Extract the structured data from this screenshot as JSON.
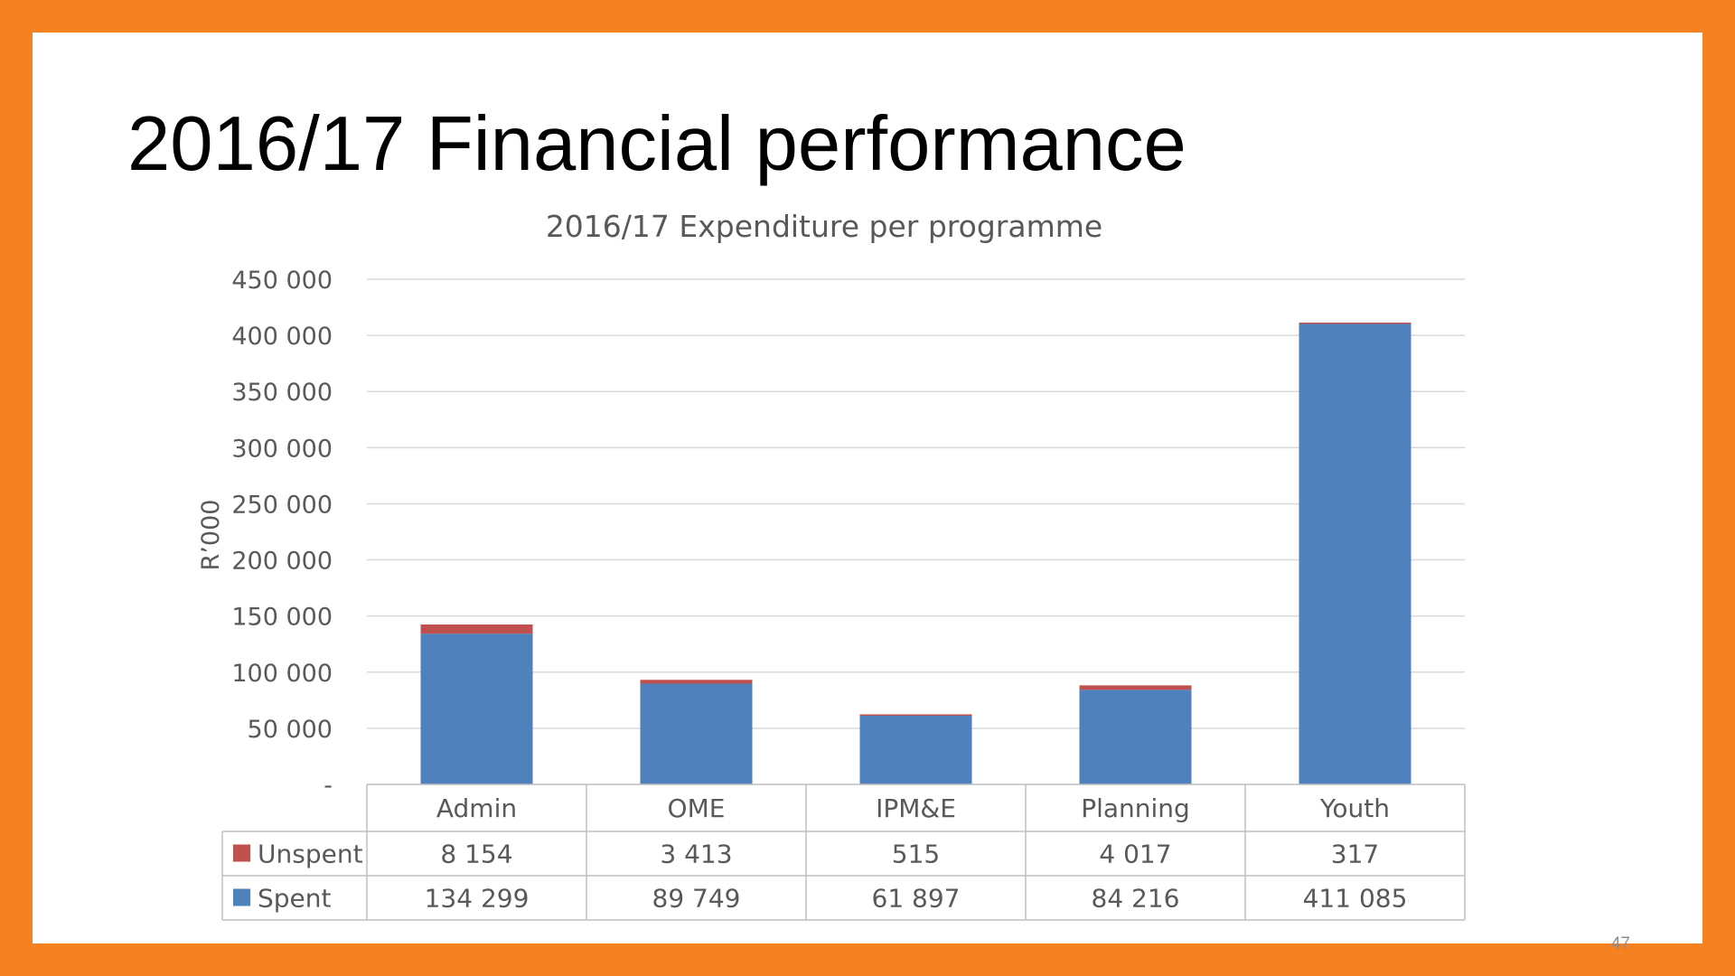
{
  "title": "2016/17 Financial performance",
  "page_number": "47",
  "colors": {
    "frame": "#F58220",
    "spent": "#4F81BD",
    "unspent": "#C0504D"
  },
  "chart_data": {
    "type": "bar",
    "stacked": true,
    "title": "2016/17 Expenditure per programme",
    "xlabel": "",
    "ylabel": "R’000",
    "ylim": [
      0,
      450000
    ],
    "yticks": [
      0,
      50000,
      100000,
      150000,
      200000,
      250000,
      300000,
      350000,
      400000,
      450000
    ],
    "ytick_labels": [
      "-",
      "50 000",
      "100 000",
      "150 000",
      "200 000",
      "250 000",
      "300 000",
      "350 000",
      "400 000",
      "450 000"
    ],
    "categories": [
      "Admin",
      "OME",
      "IPM&E",
      "Planning",
      "Youth"
    ],
    "grid": true,
    "legend": "data-table",
    "series": [
      {
        "name": "Spent",
        "color": "#4F81BD",
        "values": [
          134299,
          89749,
          61897,
          84216,
          411085
        ],
        "labels": [
          "134 299",
          "89 749",
          "61 897",
          "84 216",
          "411 085"
        ]
      },
      {
        "name": "Unspent",
        "color": "#C0504D",
        "values": [
          8154,
          3413,
          515,
          4017,
          317
        ],
        "labels": [
          "8 154",
          "3 413",
          "515",
          "4 017",
          "317"
        ]
      }
    ]
  }
}
